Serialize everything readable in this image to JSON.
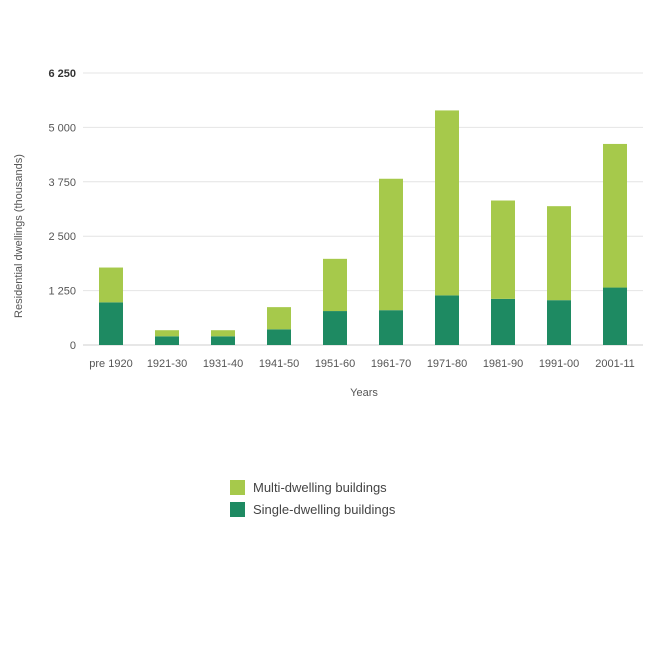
{
  "chart_data": {
    "type": "bar",
    "stacked": true,
    "categories": [
      "pre 1920",
      "1921-30",
      "1931-40",
      "1941-50",
      "1951-60",
      "1961-70",
      "1971-80",
      "1981-90",
      "1991-00",
      "2001-11"
    ],
    "series": [
      {
        "name": "Single-dwelling buildings",
        "color": "#1e8a62",
        "values": [
          980,
          200,
          200,
          360,
          780,
          800,
          1140,
          1060,
          1030,
          1320
        ]
      },
      {
        "name": "Multi-dwelling buildings",
        "color": "#a6c94b",
        "values": [
          800,
          140,
          140,
          510,
          1200,
          3020,
          4250,
          2260,
          2160,
          3300
        ]
      }
    ],
    "xlabel": "Years",
    "ylabel": "Residential dwellings (thousands)",
    "ylim": [
      0,
      6250
    ],
    "yticks": [
      0,
      1250,
      2500,
      3750,
      5000,
      6250
    ],
    "ytick_labels": [
      "0",
      "1 250",
      "2 500",
      "3 750",
      "5 000",
      "6 250"
    ],
    "grid": true,
    "legend_position": "bottom"
  },
  "legend": {
    "items": [
      {
        "label": "Multi-dwelling buildings",
        "color": "#a6c94b"
      },
      {
        "label": "Single-dwelling buildings",
        "color": "#1e8a62"
      }
    ]
  }
}
